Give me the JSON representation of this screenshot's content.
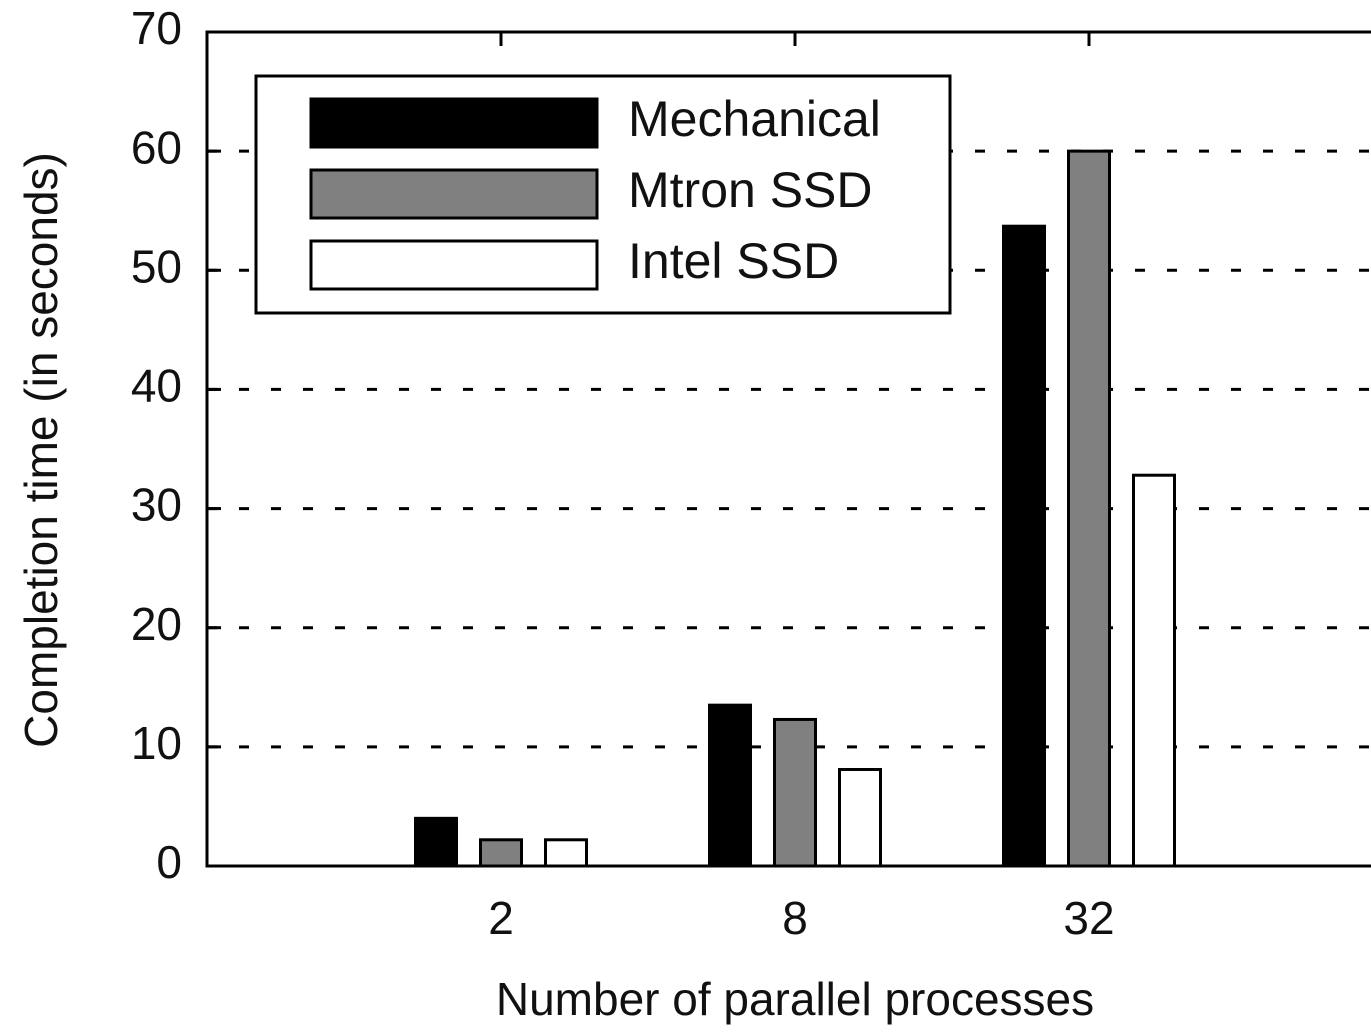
{
  "chart_data": {
    "type": "bar",
    "x_label": "Number of parallel processes",
    "y_label": "Completion time (in seconds)",
    "categories": [
      "2",
      "8",
      "32"
    ],
    "series": [
      {
        "name": "Mechanical",
        "color": "#000000",
        "values": [
          4.0,
          13.5,
          53.7
        ]
      },
      {
        "name": "Mtron SSD",
        "color": "#808080",
        "values": [
          2.2,
          12.3,
          60
        ]
      },
      {
        "name": "Intel SSD",
        "color": "#ffffff",
        "values": [
          2.2,
          8.1,
          32.8
        ]
      }
    ],
    "ylim": [
      0,
      70
    ],
    "yticks": [
      0,
      10,
      20,
      30,
      40,
      50,
      60,
      70
    ],
    "grid": true,
    "legend": "upper left"
  }
}
